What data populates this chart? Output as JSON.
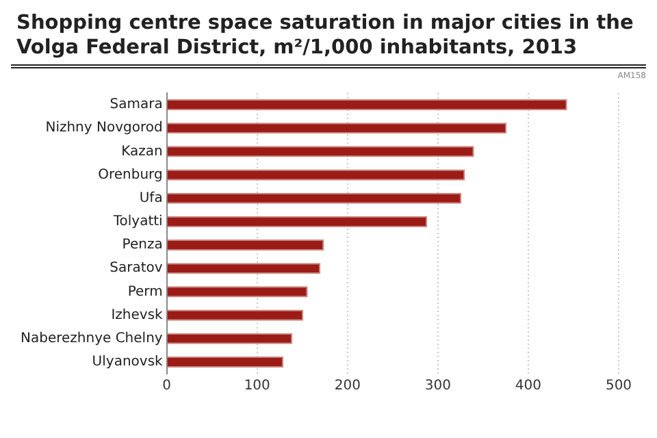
{
  "chart_data": {
    "type": "bar",
    "orientation": "horizontal",
    "title": "Shopping centre space saturation in major cities in the Volga Federal District, m²/1,000 inhabitants, 2013",
    "annotations": [
      "AM158"
    ],
    "categories": [
      "Samara",
      "Nizhny Novgorod",
      "Kazan",
      "Orenburg",
      "Ufa",
      "Tolyatti",
      "Penza",
      "Saratov",
      "Perm",
      "Izhevsk",
      "Naberezhnye Chelny",
      "Ulyanovsk"
    ],
    "values": [
      443,
      376,
      340,
      330,
      326,
      288,
      174,
      170,
      156,
      151,
      139,
      129
    ],
    "color": "#9b1b17",
    "xlim": [
      0,
      500
    ],
    "xticks": [
      0,
      100,
      200,
      300,
      400,
      500
    ],
    "grid": "x",
    "legend": false
  }
}
